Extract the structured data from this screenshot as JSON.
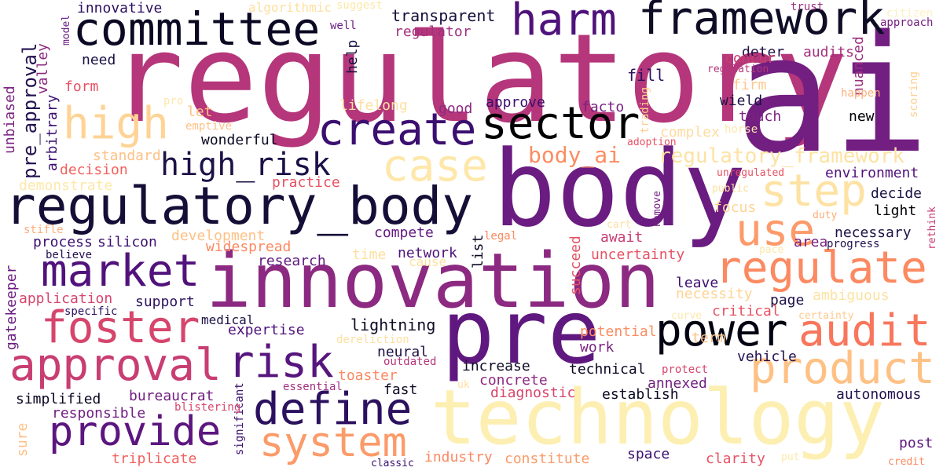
{
  "words": [
    {
      "text": "regulatory",
      "color": "#b5367a"
    },
    {
      "text": "ai",
      "color": "#721f81"
    },
    {
      "text": "body",
      "color": "#6a1c81"
    },
    {
      "text": "innovation",
      "color": "#8c2981"
    },
    {
      "text": "technology",
      "color": "#fcefb1"
    },
    {
      "text": "pre",
      "color": "#5f187f"
    },
    {
      "text": "regulatory_body",
      "color": "#150e37"
    },
    {
      "text": "framework",
      "color": "#0f0c26"
    },
    {
      "text": "committee",
      "color": "#0a0822"
    },
    {
      "text": "harm",
      "color": "#4f127b"
    },
    {
      "text": "sector",
      "color": "#000004"
    },
    {
      "text": "create",
      "color": "#3b0f70"
    },
    {
      "text": "high",
      "color": "#fed395"
    },
    {
      "text": "case",
      "color": "#fee7a9"
    },
    {
      "text": "step",
      "color": "#fde2a3"
    },
    {
      "text": "use",
      "color": "#fd9a6a"
    },
    {
      "text": "regulate",
      "color": "#fc8961"
    },
    {
      "text": "market",
      "color": "#51127c"
    },
    {
      "text": "foster",
      "color": "#d6456c"
    },
    {
      "text": "approval",
      "color": "#c83e73"
    },
    {
      "text": "risk",
      "color": "#57157e"
    },
    {
      "text": "power",
      "color": "#030312"
    },
    {
      "text": "audit",
      "color": "#f8765c"
    },
    {
      "text": "product",
      "color": "#fec185"
    },
    {
      "text": "define",
      "color": "#2c115f"
    },
    {
      "text": "provide",
      "color": "#5c167f"
    },
    {
      "text": "system",
      "color": "#fb9b6a"
    },
    {
      "text": "high_risk",
      "color": "#1d1147"
    },
    {
      "text": "body_ai",
      "color": "#fb8d62"
    },
    {
      "text": "regulatory_framework",
      "color": "#fde2a3"
    },
    {
      "text": "pre_approval",
      "color": "#221150"
    },
    {
      "text": "innovative",
      "color": "#2d1160"
    },
    {
      "text": "algorithmic",
      "color": "#fde0a1"
    },
    {
      "text": "suggest",
      "color": "#fde8aa"
    },
    {
      "text": "transparent",
      "color": "#160f3b"
    },
    {
      "text": "regulator",
      "color": "#a3307e"
    },
    {
      "text": "trust",
      "color": "#9a2d80"
    },
    {
      "text": "citizen",
      "color": "#fef0c2"
    },
    {
      "text": "approach",
      "color": "#761f81"
    },
    {
      "text": "well",
      "color": "#6b1c81"
    },
    {
      "text": "help",
      "color": "#1c1044"
    },
    {
      "text": "need",
      "color": "#1a1042"
    },
    {
      "text": "form",
      "color": "#e75263"
    },
    {
      "text": "valley",
      "color": "#8c2981"
    },
    {
      "text": "model",
      "color": "#641a80"
    },
    {
      "text": "unbiased",
      "color": "#7b2382"
    },
    {
      "text": "arbitrary",
      "color": "#3b0f70"
    },
    {
      "text": "deter",
      "color": "#1d1147"
    },
    {
      "text": "audits",
      "color": "#a3307e"
    },
    {
      "text": "regulation",
      "color": "#b5367a"
    },
    {
      "text": "concur",
      "color": "#c83e73"
    },
    {
      "text": "nuanced",
      "color": "#9c2e7f"
    },
    {
      "text": "fill",
      "color": "#2c115f"
    },
    {
      "text": "firm",
      "color": "#fec98d"
    },
    {
      "text": "wield",
      "color": "#1c1044"
    },
    {
      "text": "happen",
      "color": "#fcb07b"
    },
    {
      "text": "new",
      "color": "#000004"
    },
    {
      "text": "scoring",
      "color": "#fecf92"
    },
    {
      "text": "trading",
      "color": "#fecf92"
    },
    {
      "text": "touch",
      "color": "#7b2382"
    },
    {
      "text": "horse",
      "color": "#fde8aa"
    },
    {
      "text": "lifelong",
      "color": "#fde0a1"
    },
    {
      "text": "good",
      "color": "#8c2981"
    },
    {
      "text": "approve",
      "color": "#3b0f70"
    },
    {
      "text": "facto",
      "color": "#761f81"
    },
    {
      "text": "complex",
      "color": "#fedca0"
    },
    {
      "text": "pro",
      "color": "#fde8aa"
    },
    {
      "text": "let",
      "color": "#fec185"
    },
    {
      "text": "emptive",
      "color": "#fec185"
    },
    {
      "text": "wonderful",
      "color": "#0a0822"
    },
    {
      "text": "adoption",
      "color": "#e75263"
    },
    {
      "text": "standard",
      "color": "#fec185"
    },
    {
      "text": "decision",
      "color": "#f1605d"
    },
    {
      "text": "demonstrate",
      "color": "#fde8aa"
    },
    {
      "text": "practice",
      "color": "#e75263"
    },
    {
      "text": "unregulated",
      "color": "#e75263"
    },
    {
      "text": "public",
      "color": "#fde0a1"
    },
    {
      "text": "environment",
      "color": "#51127c"
    },
    {
      "text": "decide",
      "color": "#1a1042"
    },
    {
      "text": "remove",
      "color": "#721f81"
    },
    {
      "text": "duty",
      "color": "#fcae79"
    },
    {
      "text": "rethink",
      "color": "#c83e73"
    },
    {
      "text": "focus",
      "color": "#fed395"
    },
    {
      "text": "light",
      "color": "#000004"
    },
    {
      "text": "stifle",
      "color": "#fcae79"
    },
    {
      "text": "process",
      "color": "#3b0f70"
    },
    {
      "text": "silicon",
      "color": "#3b0f70"
    },
    {
      "text": "development",
      "color": "#fec185"
    },
    {
      "text": "compete",
      "color": "#641a80"
    },
    {
      "text": "await",
      "color": "#c83e73"
    },
    {
      "text": "cart",
      "color": "#fde0a1"
    },
    {
      "text": "legal",
      "color": "#fc8961"
    },
    {
      "text": "necessary",
      "color": "#1d1147"
    },
    {
      "text": "area",
      "color": "#761f81"
    },
    {
      "text": "pace",
      "color": "#fde8aa"
    },
    {
      "text": "progress",
      "color": "#221150"
    },
    {
      "text": "believe",
      "color": "#221150"
    },
    {
      "text": "widespread",
      "color": "#fc8961"
    },
    {
      "text": "research",
      "color": "#5f187f"
    },
    {
      "text": "list",
      "color": "#0a0822"
    },
    {
      "text": "time",
      "color": "#fde0a1"
    },
    {
      "text": "network",
      "color": "#4f127b"
    },
    {
      "text": "cause",
      "color": "#fde0a1"
    },
    {
      "text": "succeed",
      "color": "#e75263"
    },
    {
      "text": "uncertainty",
      "color": "#e75263"
    },
    {
      "text": "application",
      "color": "#d6456c"
    },
    {
      "text": "support",
      "color": "#2c115f"
    },
    {
      "text": "gatekeeper",
      "color": "#6a1c81"
    },
    {
      "text": "specific",
      "color": "#2c115f"
    },
    {
      "text": "medical",
      "color": "#1c1044"
    },
    {
      "text": "expertise",
      "color": "#4f127b"
    },
    {
      "text": "lightning",
      "color": "#0f0c26"
    },
    {
      "text": "necessity",
      "color": "#fed395"
    },
    {
      "text": "leave",
      "color": "#3b0f70"
    },
    {
      "text": "ambiguous",
      "color": "#fde2a3"
    },
    {
      "text": "page",
      "color": "#1d1147"
    },
    {
      "text": "critical",
      "color": "#e75263"
    },
    {
      "text": "curve",
      "color": "#fde8aa"
    },
    {
      "text": "certainty",
      "color": "#fec98d"
    },
    {
      "text": "potential",
      "color": "#fb8d62"
    },
    {
      "text": "work",
      "color": "#7b2382"
    },
    {
      "text": "neural",
      "color": "#1c1044"
    },
    {
      "text": "dereliction",
      "color": "#fde0a1"
    },
    {
      "text": "term",
      "color": "#fec185"
    },
    {
      "text": "vehicle",
      "color": "#221150"
    },
    {
      "text": "increase",
      "color": "#0f0c26"
    },
    {
      "text": "technical",
      "color": "#0a0822"
    },
    {
      "text": "protect",
      "color": "#d6456c"
    },
    {
      "text": "toaster",
      "color": "#fc8961"
    },
    {
      "text": "outdated",
      "color": "#b5367a"
    },
    {
      "text": "concrete",
      "color": "#8c2981"
    },
    {
      "text": "annexed",
      "color": "#721f81"
    },
    {
      "text": "significant",
      "color": "#3b0f70"
    },
    {
      "text": "uk",
      "color": "#fde0a1"
    },
    {
      "text": "essential",
      "color": "#a3307e"
    },
    {
      "text": "diagnostic",
      "color": "#d6456c"
    },
    {
      "text": "simplified",
      "color": "#0a0822"
    },
    {
      "text": "bureaucrat",
      "color": "#721f81"
    },
    {
      "text": "fast",
      "color": "#0f0c26"
    },
    {
      "text": "establish",
      "color": "#0a0822"
    },
    {
      "text": "autonomous",
      "color": "#221150"
    },
    {
      "text": "blistering",
      "color": "#d6456c"
    },
    {
      "text": "responsible",
      "color": "#721f81"
    },
    {
      "text": "sure",
      "color": "#fec185"
    },
    {
      "text": "triplicate",
      "color": "#f1605d"
    },
    {
      "text": "industry",
      "color": "#fc8961"
    },
    {
      "text": "constitute",
      "color": "#fb9b6a"
    },
    {
      "text": "space",
      "color": "#3b0f70"
    },
    {
      "text": "clarity",
      "color": "#e75263"
    },
    {
      "text": "put",
      "color": "#fde8aa"
    },
    {
      "text": "post",
      "color": "#5f187f"
    },
    {
      "text": "classic",
      "color": "#3b0f70"
    },
    {
      "text": "credit",
      "color": "#fc8961"
    }
  ]
}
